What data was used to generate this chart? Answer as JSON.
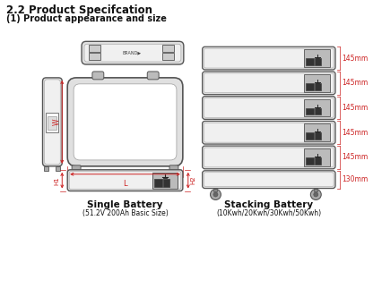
{
  "title1": "2.2 Product Specifcation",
  "title2": "(1) Product appearance and size",
  "label_single": "Single Battery",
  "label_single_sub": "(51.2V 200Ah Basic Size)",
  "label_stack": "Stacking Battery",
  "label_stack_sub": "(10Kwh/20Kwh/30Kwh/50Kwh)",
  "dim_labels": [
    "145mm",
    "145mm",
    "145mm",
    "145mm",
    "145mm",
    "130mm"
  ],
  "dim_w": "W",
  "dim_l": "L",
  "dim_h1": "H1",
  "dim_h2": "H2",
  "bg_color": "#ffffff",
  "line_color": "#555555",
  "red_color": "#cc2222",
  "text_color": "#111111",
  "gray_fill": "#e0e0e0",
  "light_gray": "#f0f0f0",
  "dark_fill": "#444444"
}
